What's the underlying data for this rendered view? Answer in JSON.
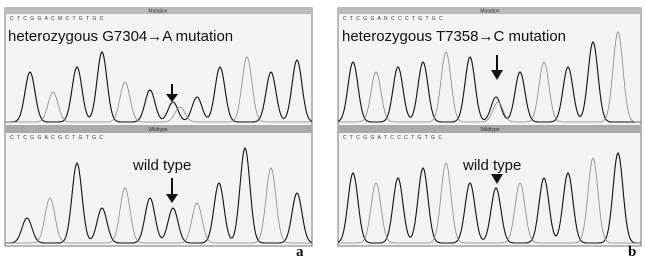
{
  "panels": [
    {
      "label": "a",
      "top": {
        "header": "Mutation",
        "sequence": "C T C G G A C M C T G T G C",
        "annotation": "heterozygous G7304→A mutation"
      },
      "bottom": {
        "header": "Wildtype",
        "sequence": "C T C G G A C G C T G T G C",
        "annotation": "wild type"
      }
    },
    {
      "label": "b",
      "top": {
        "header": "Mutation",
        "sequence": "C T C G G A N C C C T G T G C",
        "annotation": "heterozygous T7358→C mutation"
      },
      "bottom": {
        "header": "Wildtype",
        "sequence": "C T C G G A T C C C T G T G C",
        "annotation": "wild type"
      }
    }
  ]
}
